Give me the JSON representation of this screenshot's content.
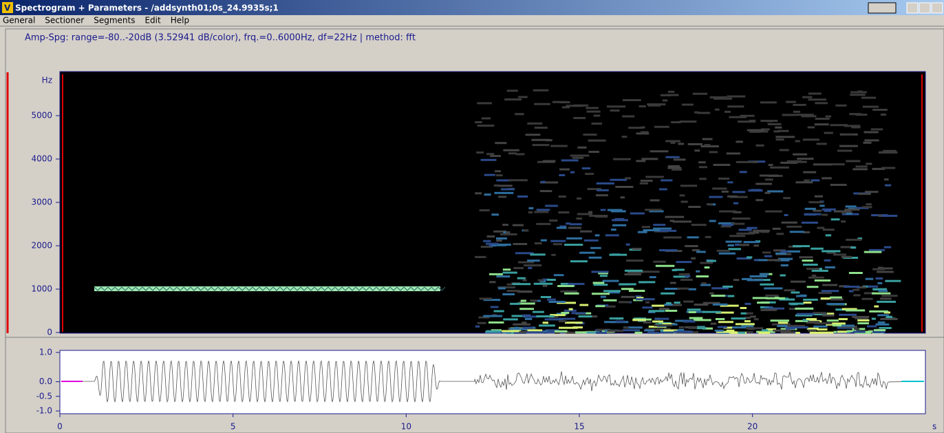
{
  "window": {
    "title": "Spectrogram + Parameters - /addsynth01;0s_24.9935s;1"
  },
  "menu": [
    "General",
    "Sectioner",
    "Segments",
    "Edit",
    "Help"
  ],
  "spectrogram": {
    "header": "Amp-Spg: range=-80..-20dB (3.52941 dB/color), frq.=0..6000Hz, df=22Hz | method: fft",
    "y_unit": "Hz",
    "ylim": [
      0,
      6000
    ],
    "yticks": [
      0,
      1000,
      2000,
      3000,
      4000,
      5000
    ]
  },
  "waveform": {
    "ylim": [
      -1,
      1
    ],
    "yticks": [
      {
        "value": 1,
        "label": "1.0"
      },
      {
        "value": 0,
        "label": "0.0"
      },
      {
        "value": -0.5,
        "label": "-0.5"
      },
      {
        "value": -1,
        "label": "-1.0"
      }
    ]
  },
  "time_axis": {
    "xlim": [
      0,
      24.9935
    ],
    "xticks": [
      0,
      5,
      10,
      15,
      20
    ],
    "unit": "s"
  }
}
